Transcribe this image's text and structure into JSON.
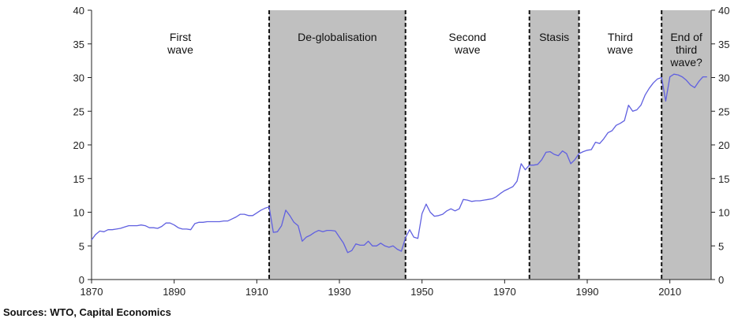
{
  "chart_data": {
    "type": "line",
    "xlim": [
      1870,
      2020
    ],
    "ylim": [
      0,
      40
    ],
    "x_ticks": [
      1870,
      1890,
      1910,
      1930,
      1950,
      1970,
      1990,
      2010
    ],
    "y_ticks": [
      0,
      5,
      10,
      15,
      20,
      25,
      30,
      35,
      40
    ],
    "grid": false,
    "colors": {
      "line": "#6060e0",
      "shade": "#c0c0c0"
    },
    "periods": [
      {
        "label": [
          "First",
          "wave"
        ],
        "start": 1870,
        "end": 1913,
        "shaded": false
      },
      {
        "label": [
          "De-globalisation"
        ],
        "start": 1913,
        "end": 1946,
        "shaded": true
      },
      {
        "label": [
          "Second",
          "wave"
        ],
        "start": 1946,
        "end": 1976,
        "shaded": false
      },
      {
        "label": [
          "Stasis"
        ],
        "start": 1976,
        "end": 1988,
        "shaded": true
      },
      {
        "label": [
          "Third",
          "wave"
        ],
        "start": 1988,
        "end": 2008,
        "shaded": false
      },
      {
        "label": [
          "End of",
          "third",
          "wave?"
        ],
        "start": 2008,
        "end": 2020,
        "shaded": true
      }
    ],
    "series": [
      {
        "x": [
          1870,
          1871,
          1872,
          1873,
          1874,
          1875,
          1876,
          1877,
          1878,
          1879,
          1880,
          1881,
          1882,
          1883,
          1884,
          1885,
          1886,
          1887,
          1888,
          1889,
          1890,
          1891,
          1892,
          1893,
          1894,
          1895,
          1896,
          1897,
          1898,
          1899,
          1900,
          1901,
          1902,
          1903,
          1904,
          1905,
          1906,
          1907,
          1908,
          1909,
          1910,
          1911,
          1912,
          1913,
          1914,
          1915,
          1916,
          1917,
          1918,
          1919,
          1920,
          1921,
          1922,
          1923,
          1924,
          1925,
          1926,
          1927,
          1928,
          1929,
          1930,
          1931,
          1932,
          1933,
          1934,
          1935,
          1936,
          1937,
          1938,
          1939,
          1940,
          1941,
          1942,
          1943,
          1944,
          1945,
          1946,
          1947,
          1948,
          1949,
          1950,
          1951,
          1952,
          1953,
          1954,
          1955,
          1956,
          1957,
          1958,
          1959,
          1960,
          1961,
          1962,
          1963,
          1964,
          1965,
          1966,
          1967,
          1968,
          1969,
          1970,
          1971,
          1972,
          1973,
          1974,
          1975,
          1976,
          1977,
          1978,
          1979,
          1980,
          1981,
          1982,
          1983,
          1984,
          1985,
          1986,
          1987,
          1988,
          1989,
          1990,
          1991,
          1992,
          1993,
          1994,
          1995,
          1996,
          1997,
          1998,
          1999,
          2000,
          2001,
          2002,
          2003,
          2004,
          2005,
          2006,
          2007,
          2008,
          2009,
          2010,
          2011,
          2012,
          2013,
          2014,
          2015,
          2016,
          2017,
          2018,
          2019
        ],
        "values": [
          5.9,
          6.7,
          7.2,
          7.1,
          7.4,
          7.4,
          7.5,
          7.6,
          7.8,
          8.0,
          8.0,
          8.0,
          8.1,
          8.0,
          7.7,
          7.7,
          7.6,
          7.9,
          8.4,
          8.4,
          8.1,
          7.7,
          7.5,
          7.5,
          7.4,
          8.3,
          8.5,
          8.5,
          8.6,
          8.6,
          8.6,
          8.6,
          8.7,
          8.7,
          9.0,
          9.3,
          9.7,
          9.7,
          9.5,
          9.5,
          9.9,
          10.3,
          10.6,
          10.8,
          7.0,
          7.1,
          8.0,
          10.3,
          9.5,
          8.5,
          8.0,
          5.7,
          6.3,
          6.6,
          7.0,
          7.3,
          7.1,
          7.3,
          7.3,
          7.2,
          6.3,
          5.4,
          4.0,
          4.3,
          5.3,
          5.1,
          5.1,
          5.7,
          5.0,
          5.0,
          5.4,
          5.0,
          4.8,
          5.0,
          4.5,
          4.2,
          6.2,
          7.4,
          6.3,
          6.1,
          9.8,
          11.2,
          10.0,
          9.4,
          9.5,
          9.7,
          10.2,
          10.5,
          10.2,
          10.5,
          11.9,
          11.8,
          11.6,
          11.7,
          11.7,
          11.8,
          11.9,
          12.0,
          12.3,
          12.8,
          13.2,
          13.5,
          13.8,
          14.6,
          17.2,
          16.3,
          17.0,
          17.0,
          17.1,
          17.8,
          18.9,
          19.0,
          18.6,
          18.4,
          19.1,
          18.7,
          17.2,
          17.8,
          18.7,
          19.0,
          19.2,
          19.3,
          20.4,
          20.2,
          20.9,
          21.8,
          22.1,
          22.9,
          23.2,
          23.6,
          25.9,
          25.0,
          25.2,
          25.9,
          27.4,
          28.4,
          29.2,
          29.8,
          30.0,
          26.5,
          30.1,
          30.5,
          30.4,
          30.1,
          29.6,
          28.9,
          28.5,
          29.4,
          30.1,
          30.1
        ]
      }
    ]
  },
  "source_note": "Sources: WTO, Capital Economics"
}
